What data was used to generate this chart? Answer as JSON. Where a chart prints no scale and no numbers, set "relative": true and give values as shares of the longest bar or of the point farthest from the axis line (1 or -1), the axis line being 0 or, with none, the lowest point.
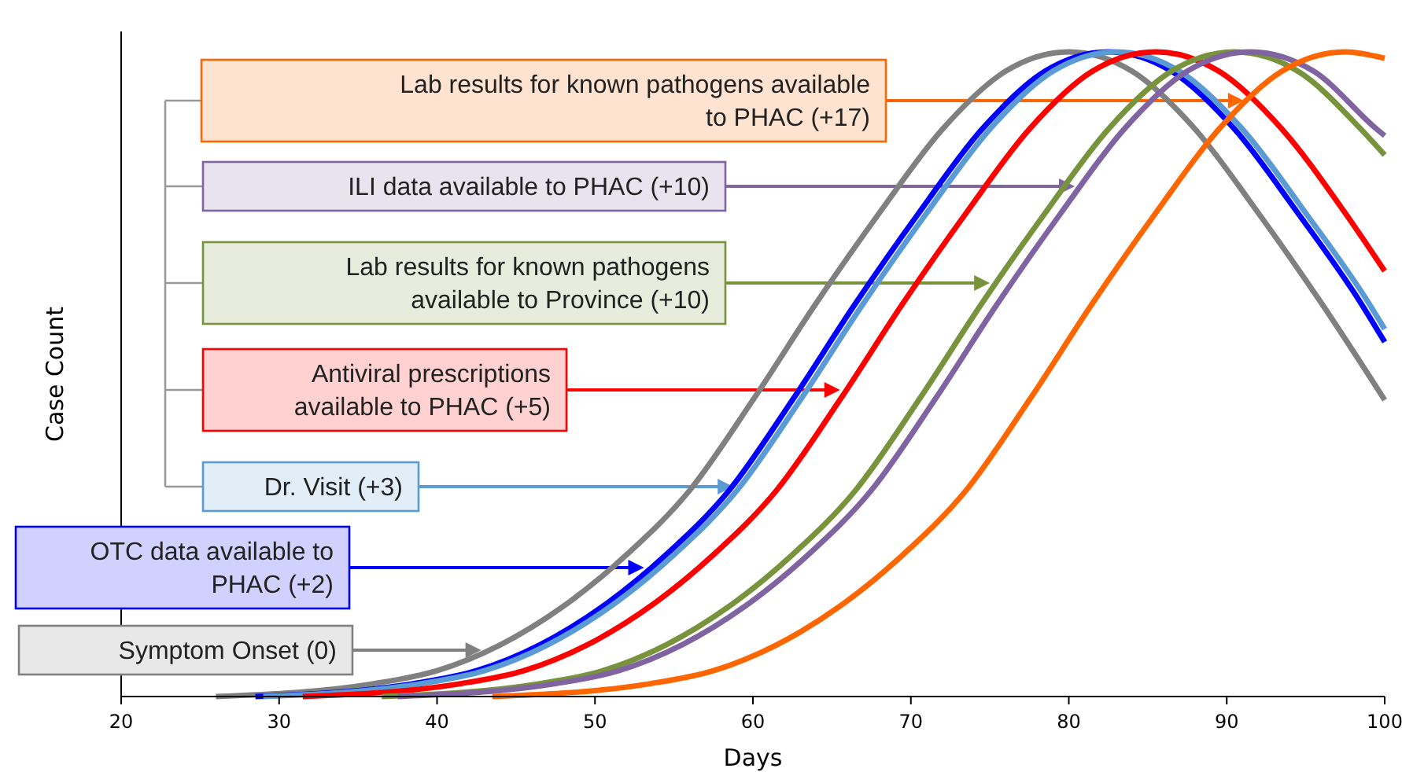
{
  "chart_data": {
    "type": "line",
    "relative": true,
    "xlabel": "Days",
    "ylabel": "Case Count",
    "xlim": [
      20,
      100
    ],
    "xticks": [
      20,
      30,
      40,
      50,
      60,
      70,
      80,
      90,
      100
    ],
    "legend": "left",
    "grid": false,
    "line_style": "solid",
    "series": [
      {
        "name": "Symptom Onset (0)",
        "color": "#808080",
        "x": [
          26,
          36,
          40,
          44,
          48,
          52,
          56,
          60,
          64,
          68,
          72,
          76,
          80,
          84,
          88,
          92,
          96,
          100
        ],
        "values": [
          0,
          0.02,
          0.04,
          0.08,
          0.14,
          0.22,
          0.32,
          0.46,
          0.61,
          0.75,
          0.88,
          0.97,
          1,
          0.97,
          0.88,
          0.75,
          0.61,
          0.46
        ]
      },
      {
        "name": "OTC data available to PHAC (+2)",
        "color": "#0000ff",
        "x": [
          28.5,
          38.5,
          42.5,
          46.5,
          50.5,
          54.5,
          58.5,
          62.5,
          66.5,
          70.5,
          74.5,
          78.5,
          82.5,
          86.5,
          90.5,
          94.5,
          98.5,
          100
        ],
        "values": [
          0,
          0.02,
          0.04,
          0.08,
          0.14,
          0.22,
          0.32,
          0.46,
          0.61,
          0.75,
          0.88,
          0.97,
          1,
          0.97,
          0.88,
          0.75,
          0.61,
          0.55
        ]
      },
      {
        "name": "Dr. Visit (+3)",
        "color": "#5b9bd5",
        "x": [
          29,
          39,
          43,
          47,
          51,
          55,
          59,
          63,
          67,
          71,
          75,
          79,
          83,
          87,
          91,
          95,
          99,
          100
        ],
        "values": [
          0,
          0.02,
          0.04,
          0.08,
          0.14,
          0.22,
          0.32,
          0.46,
          0.61,
          0.75,
          0.88,
          0.97,
          1,
          0.97,
          0.88,
          0.75,
          0.61,
          0.57
        ]
      },
      {
        "name": "Antiviral prescriptions available to PHAC (+5)",
        "color": "#ff0000",
        "x": [
          31.5,
          41.5,
          45.5,
          49.5,
          53.5,
          57.5,
          61.5,
          65.5,
          69.5,
          73.5,
          77.5,
          81.5,
          85.5,
          89.5,
          93.5,
          97.5,
          100
        ],
        "values": [
          0,
          0.02,
          0.04,
          0.08,
          0.14,
          0.22,
          0.32,
          0.46,
          0.61,
          0.75,
          0.88,
          0.97,
          1,
          0.97,
          0.88,
          0.75,
          0.66
        ]
      },
      {
        "name": "Lab results for known pathogens available to Province (+10)",
        "color": "#77933c",
        "x": [
          36.5,
          46.5,
          50.5,
          54.5,
          58.5,
          62.5,
          66.5,
          70.5,
          74.5,
          78.5,
          82.5,
          86.5,
          90.5,
          94.5,
          98.5,
          100
        ],
        "values": [
          0,
          0.02,
          0.04,
          0.08,
          0.14,
          0.22,
          0.32,
          0.46,
          0.61,
          0.75,
          0.88,
          0.97,
          1,
          0.97,
          0.88,
          0.84
        ]
      },
      {
        "name": "ILI data available to PHAC (+10)",
        "color": "#8064a2",
        "x": [
          37.5,
          47.5,
          51.5,
          55.5,
          59.5,
          63.5,
          67.5,
          71.5,
          75.5,
          79.5,
          83.5,
          87.5,
          91.5,
          95.5,
          99.5,
          100
        ],
        "values": [
          0,
          0.02,
          0.04,
          0.08,
          0.14,
          0.22,
          0.32,
          0.46,
          0.61,
          0.75,
          0.88,
          0.97,
          1,
          0.97,
          0.88,
          0.87
        ]
      },
      {
        "name": "Lab results for known pathogens available to PHAC (+17)",
        "color": "#ff6600",
        "x": [
          43.5,
          53.5,
          57.5,
          61.5,
          65.5,
          69.5,
          73.5,
          77.5,
          81.5,
          85.5,
          89.5,
          93.5,
          97.5,
          100
        ],
        "values": [
          0,
          0.02,
          0.04,
          0.08,
          0.14,
          0.22,
          0.32,
          0.46,
          0.61,
          0.75,
          0.88,
          0.97,
          1,
          0.99
        ]
      }
    ]
  }
}
